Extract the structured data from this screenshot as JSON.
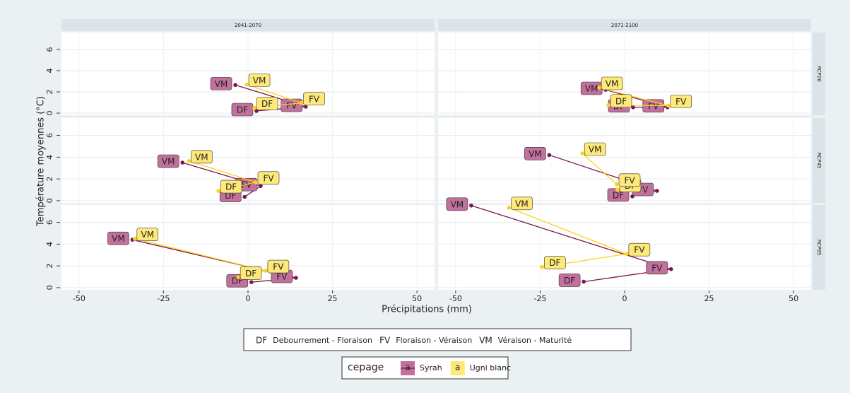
{
  "chart_data": {
    "type": "line",
    "x_label": "Précipitations (mm)",
    "y_label": "Température moyennes (°C)",
    "xlim": [
      -55.2,
      55.2
    ],
    "xticks": [
      -50,
      -25,
      0,
      25,
      50
    ],
    "ylim": [
      -0.2,
      7.6
    ],
    "yticks": [
      0,
      2,
      4,
      6
    ],
    "grid": true,
    "columns": [
      "2041-2070",
      "2071-2100"
    ],
    "rows": [
      "RCP26",
      "RCP45",
      "RCP85"
    ],
    "categories": [
      "DF",
      "FV",
      "VM"
    ],
    "category_descriptions": [
      "Debourrement - Floraison",
      "Floraison - Véraison",
      "Véraison - Maturité"
    ],
    "legend_title": "cepage",
    "legend_key_text": "a",
    "series": [
      {
        "name": "Syrah",
        "color": "#7b1450",
        "label_fill": "#c2709c"
      },
      {
        "name": "Ugni blanc",
        "color": "#ffd21a",
        "label_fill": "#fde878"
      }
    ],
    "panels": [
      {
        "series": [
          {
            "x": [
              2.5,
              17.1,
              -3.75
            ],
            "values": [
              0.2,
              0.6,
              2.65
            ]
          },
          {
            "x": [
              1.9,
              15.8,
              -0.4
            ],
            "values": [
              0.5,
              0.95,
              2.7
            ]
          }
        ]
      },
      {
        "series": [
          {
            "x": [
              2.5,
              12.7,
              -5.6
            ],
            "values": [
              0.55,
              0.55,
              2.2
            ]
          },
          {
            "x": [
              -4.8,
              12.9,
              -7.5
            ],
            "values": [
              0.75,
              0.7,
              2.4
            ]
          }
        ]
      },
      {
        "series": [
          {
            "x": [
              -1,
              3.75,
              -19.4
            ],
            "values": [
              0.35,
              1.35,
              3.5
            ]
          },
          {
            "x": [
              -8.75,
              2.3,
              -17.5
            ],
            "values": [
              0.9,
              1.7,
              3.65
            ]
          }
        ]
      },
      {
        "series": [
          {
            "x": [
              2.3,
              9.6,
              -22.3
            ],
            "values": [
              0.4,
              0.9,
              4.2
            ]
          },
          {
            "x": [
              -2.1,
              -2.3,
              -12.5
            ],
            "values": [
              1.0,
              1.5,
              4.35
            ]
          }
        ]
      },
      {
        "series": [
          {
            "x": [
              1,
              14.2,
              -34.2
            ],
            "values": [
              0.5,
              0.9,
              4.4
            ]
          },
          {
            "x": [
              -2.9,
              5.2,
              -33.5
            ],
            "values": [
              0.95,
              1.55,
              4.5
            ]
          }
        ]
      },
      {
        "series": [
          {
            "x": [
              -12.1,
              13.75,
              -45.4
            ],
            "values": [
              0.55,
              1.7,
              7.55
            ]
          },
          {
            "x": [
              -24.4,
              0.6,
              -34.2
            ],
            "values": [
              1.9,
              3.1,
              7.35
            ]
          }
        ]
      }
    ]
  }
}
